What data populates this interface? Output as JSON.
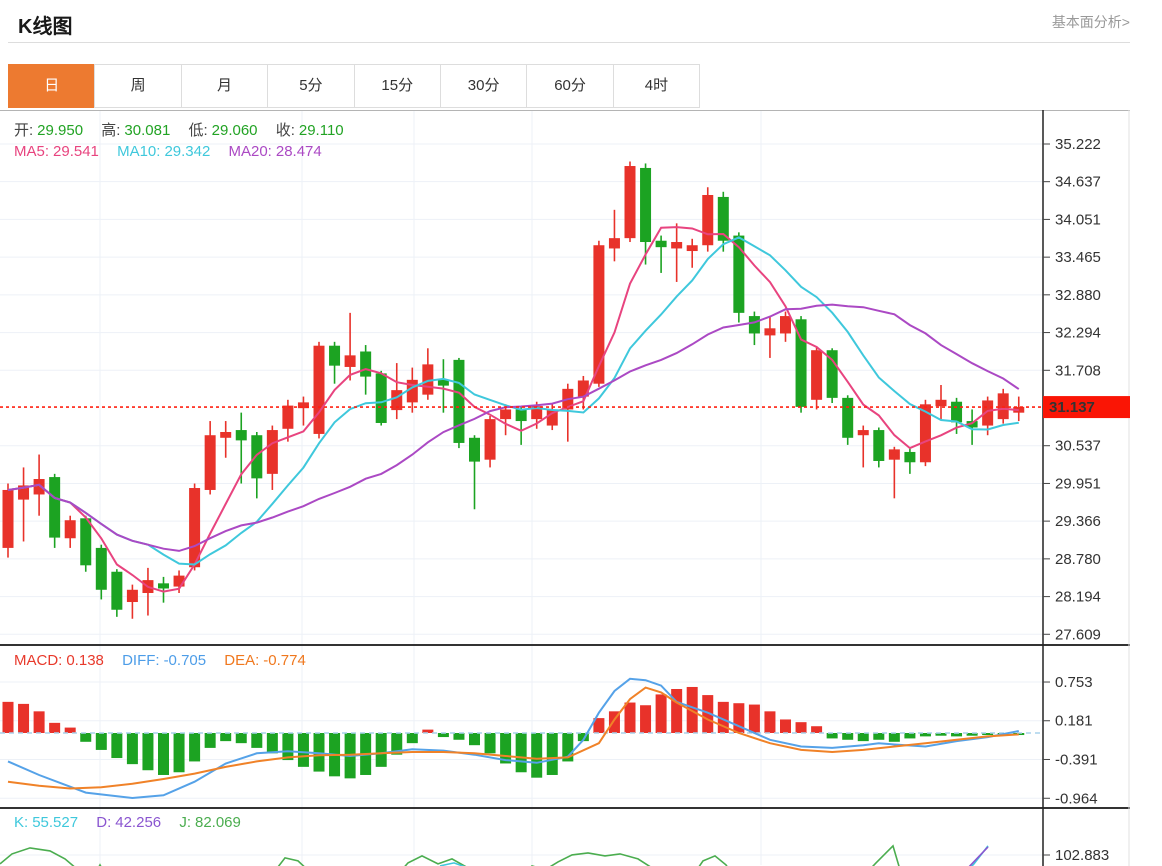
{
  "header": {
    "title": "K线图",
    "link": "基本面分析>"
  },
  "tabs": {
    "items": [
      "日",
      "周",
      "月",
      "5分",
      "15分",
      "30分",
      "60分",
      "4时"
    ],
    "active_index": 0
  },
  "legend": {
    "ohlc": {
      "open_label": "开:",
      "open": "29.950",
      "high_label": "高:",
      "high": "30.081",
      "low_label": "低:",
      "low": "29.060",
      "close_label": "收:",
      "close": "29.110"
    },
    "ma": {
      "ma5_label": "MA5:",
      "ma5": "29.541",
      "ma10_label": "MA10:",
      "ma10": "29.342",
      "ma20_label": "MA20:",
      "ma20": "28.474"
    },
    "macd": {
      "macd_label": "MACD:",
      "macd": "0.138",
      "diff_label": "DIFF:",
      "diff": "-0.705",
      "dea_label": "DEA:",
      "dea": "-0.774"
    },
    "kdj": {
      "k_label": "K:",
      "k": "55.527",
      "d_label": "D:",
      "d": "42.256",
      "j_label": "J:",
      "j": "82.069"
    }
  },
  "colors": {
    "up": "#e8322a",
    "down": "#1ca322",
    "tab_active": "#ed7a30",
    "price_badge": "#fa1505",
    "price_line": "#ff2012",
    "ma5": "#e8447f",
    "ma10": "#3fc8dc",
    "ma20": "#ab49c4",
    "diff": "#55a2e8",
    "dea": "#f08228",
    "zero_dash": "#a8d2ec",
    "k": "#3fc8dc",
    "d": "#8a55d0",
    "j": "#4bad4f",
    "grid": "#edf1f7",
    "axis": "#222"
  },
  "chart_data": {
    "type": "candlestick",
    "interval": "日",
    "main": {
      "y_axis_labels": [
        "35.222",
        "34.637",
        "34.051",
        "33.465",
        "32.880",
        "32.294",
        "31.708",
        "30.537",
        "29.951",
        "29.366",
        "28.780",
        "28.194",
        "27.609"
      ],
      "current_price": "31.137",
      "ma_periods": [
        5,
        10,
        20
      ],
      "candles_ochl": [
        [
          28.95,
          29.85,
          28.8,
          29.95
        ],
        [
          29.7,
          29.92,
          29.05,
          30.2
        ],
        [
          29.78,
          30.02,
          29.45,
          30.4
        ],
        [
          30.05,
          29.11,
          28.95,
          30.1
        ],
        [
          29.1,
          29.38,
          28.95,
          29.45
        ],
        [
          29.41,
          28.68,
          28.58,
          29.45
        ],
        [
          28.95,
          28.3,
          28.15,
          29.0
        ],
        [
          28.58,
          27.99,
          27.88,
          28.62
        ],
        [
          28.11,
          28.3,
          27.85,
          28.38
        ],
        [
          28.25,
          28.45,
          27.9,
          28.64
        ],
        [
          28.4,
          28.32,
          28.1,
          28.5
        ],
        [
          28.35,
          28.52,
          28.25,
          28.6
        ],
        [
          28.65,
          29.88,
          28.6,
          29.95
        ],
        [
          29.85,
          30.7,
          29.78,
          30.92
        ],
        [
          30.66,
          30.75,
          30.35,
          30.92
        ],
        [
          30.78,
          30.62,
          29.95,
          31.05
        ],
        [
          30.7,
          30.03,
          29.72,
          30.75
        ],
        [
          30.1,
          30.78,
          29.85,
          30.85
        ],
        [
          30.8,
          31.16,
          30.6,
          31.25
        ],
        [
          31.12,
          31.21,
          30.85,
          31.3
        ],
        [
          30.72,
          32.09,
          30.65,
          32.15
        ],
        [
          32.09,
          31.78,
          31.5,
          32.15
        ],
        [
          31.76,
          31.94,
          31.55,
          32.6
        ],
        [
          32.0,
          31.61,
          31.33,
          32.1
        ],
        [
          31.66,
          30.89,
          30.85,
          31.7
        ],
        [
          31.09,
          31.4,
          30.95,
          31.82
        ],
        [
          31.21,
          31.56,
          31.05,
          31.75
        ],
        [
          31.33,
          31.8,
          31.25,
          32.05
        ],
        [
          31.56,
          31.47,
          31.05,
          31.88
        ],
        [
          31.87,
          30.58,
          30.5,
          31.9
        ],
        [
          30.66,
          30.29,
          29.55,
          30.7
        ],
        [
          30.32,
          30.95,
          30.2,
          31.0
        ],
        [
          30.95,
          31.1,
          30.7,
          31.18
        ],
        [
          31.1,
          30.92,
          30.55,
          31.15
        ],
        [
          30.95,
          31.15,
          30.8,
          31.22
        ],
        [
          30.85,
          31.1,
          30.78,
          31.18
        ],
        [
          31.1,
          31.42,
          30.6,
          31.5
        ],
        [
          31.3,
          31.55,
          31.1,
          31.62
        ],
        [
          31.5,
          33.65,
          31.45,
          33.72
        ],
        [
          33.6,
          33.76,
          33.4,
          34.2
        ],
        [
          33.76,
          34.88,
          33.7,
          34.95
        ],
        [
          34.85,
          33.7,
          33.35,
          34.92
        ],
        [
          33.72,
          33.62,
          33.22,
          33.8
        ],
        [
          33.6,
          33.7,
          33.08,
          33.99
        ],
        [
          33.56,
          33.65,
          33.3,
          33.75
        ],
        [
          33.65,
          34.43,
          33.55,
          34.55
        ],
        [
          34.4,
          33.72,
          33.55,
          34.48
        ],
        [
          33.8,
          32.6,
          32.45,
          33.85
        ],
        [
          32.55,
          32.28,
          32.1,
          32.62
        ],
        [
          32.25,
          32.36,
          31.9,
          32.55
        ],
        [
          32.28,
          32.55,
          32.15,
          32.62
        ],
        [
          32.5,
          31.14,
          31.05,
          32.55
        ],
        [
          31.25,
          32.02,
          31.1,
          32.08
        ],
        [
          32.02,
          31.28,
          31.2,
          32.05
        ],
        [
          31.28,
          30.66,
          30.55,
          31.32
        ],
        [
          30.7,
          30.78,
          30.2,
          30.85
        ],
        [
          30.78,
          30.3,
          30.2,
          30.82
        ],
        [
          30.32,
          30.48,
          29.72,
          30.52
        ],
        [
          30.44,
          30.28,
          30.1,
          30.5
        ],
        [
          30.28,
          31.18,
          30.22,
          31.25
        ],
        [
          31.15,
          31.25,
          30.95,
          31.48
        ],
        [
          31.22,
          30.9,
          30.72,
          31.28
        ],
        [
          30.92,
          30.82,
          30.55,
          31.1
        ],
        [
          30.85,
          31.24,
          30.7,
          31.3
        ],
        [
          30.95,
          31.35,
          30.88,
          31.42
        ],
        [
          31.05,
          31.14,
          30.92,
          31.3
        ]
      ]
    },
    "macd": {
      "y_axis_labels": [
        "0.753",
        "0.181",
        "-0.391",
        "-0.964"
      ],
      "hist": [
        0.46,
        0.43,
        0.32,
        0.15,
        0.08,
        -0.13,
        -0.25,
        -0.37,
        -0.46,
        -0.55,
        -0.62,
        -0.58,
        -0.42,
        -0.22,
        -0.12,
        -0.15,
        -0.22,
        -0.3,
        -0.4,
        -0.5,
        -0.57,
        -0.64,
        -0.67,
        -0.62,
        -0.5,
        -0.32,
        -0.15,
        0.05,
        -0.06,
        -0.1,
        -0.18,
        -0.3,
        -0.45,
        -0.58,
        -0.66,
        -0.62,
        -0.42,
        -0.12,
        0.22,
        0.32,
        0.45,
        0.41,
        0.57,
        0.65,
        0.68,
        0.56,
        0.46,
        0.44,
        0.42,
        0.32,
        0.2,
        0.16,
        0.1,
        -0.08,
        -0.1,
        -0.12,
        -0.1,
        -0.13,
        -0.08,
        -0.05,
        -0.04,
        -0.05,
        -0.04,
        -0.03,
        -0.03,
        -0.03
      ],
      "diff_points": [
        [
          0,
          -0.42
        ],
        [
          2,
          -0.62
        ],
        [
          5,
          -0.88
        ],
        [
          8,
          -0.96
        ],
        [
          10,
          -0.92
        ],
        [
          12,
          -0.72
        ],
        [
          14,
          -0.45
        ],
        [
          16,
          -0.3
        ],
        [
          18,
          -0.27
        ],
        [
          20,
          -0.3
        ],
        [
          22,
          -0.34
        ],
        [
          24,
          -0.3
        ],
        [
          26,
          -0.24
        ],
        [
          28,
          -0.26
        ],
        [
          30,
          -0.32
        ],
        [
          32,
          -0.4
        ],
        [
          34,
          -0.44
        ],
        [
          36,
          -0.35
        ],
        [
          37,
          -0.1
        ],
        [
          38,
          0.3
        ],
        [
          39,
          0.62
        ],
        [
          40,
          0.8
        ],
        [
          41,
          0.78
        ],
        [
          42,
          0.7
        ],
        [
          43,
          0.46
        ],
        [
          45,
          0.3
        ],
        [
          47,
          0.1
        ],
        [
          49,
          -0.1
        ],
        [
          51,
          -0.2
        ],
        [
          53,
          -0.22
        ],
        [
          55,
          -0.18
        ],
        [
          56,
          -0.15
        ],
        [
          57,
          -0.17
        ],
        [
          59,
          -0.2
        ],
        [
          61,
          -0.12
        ],
        [
          63,
          -0.06
        ],
        [
          65,
          0.03
        ]
      ],
      "dea_points": [
        [
          0,
          -0.72
        ],
        [
          2,
          -0.78
        ],
        [
          4,
          -0.82
        ],
        [
          6,
          -0.8
        ],
        [
          8,
          -0.75
        ],
        [
          10,
          -0.68
        ],
        [
          12,
          -0.6
        ],
        [
          14,
          -0.5
        ],
        [
          16,
          -0.42
        ],
        [
          18,
          -0.36
        ],
        [
          20,
          -0.33
        ],
        [
          22,
          -0.32
        ],
        [
          24,
          -0.3
        ],
        [
          26,
          -0.28
        ],
        [
          28,
          -0.28
        ],
        [
          30,
          -0.3
        ],
        [
          32,
          -0.34
        ],
        [
          34,
          -0.38
        ],
        [
          36,
          -0.36
        ],
        [
          38,
          -0.15
        ],
        [
          39,
          0.2
        ],
        [
          40,
          0.5
        ],
        [
          41,
          0.67
        ],
        [
          42,
          0.6
        ],
        [
          43,
          0.45
        ],
        [
          45,
          0.2
        ],
        [
          47,
          0.0
        ],
        [
          49,
          -0.15
        ],
        [
          51,
          -0.25
        ],
        [
          53,
          -0.28
        ],
        [
          55,
          -0.25
        ],
        [
          57,
          -0.2
        ],
        [
          59,
          -0.15
        ],
        [
          61,
          -0.1
        ],
        [
          63,
          -0.05
        ],
        [
          65,
          -0.02
        ]
      ]
    },
    "kdj": {
      "y_axis_labels": [
        "102.883"
      ],
      "j_segments": [
        [
          [
            0,
            94
          ],
          [
            12,
            104
          ],
          [
            30,
            110
          ],
          [
            50,
            107
          ],
          [
            65,
            99
          ],
          [
            78,
            88
          ],
          [
            92,
            78
          ],
          [
            100,
            93
          ],
          [
            108,
            78
          ]
        ],
        [
          [
            268,
            78
          ],
          [
            285,
            100
          ],
          [
            298,
            97
          ],
          [
            312,
            84
          ],
          [
            325,
            78
          ]
        ],
        [
          [
            393,
            78
          ],
          [
            408,
            95
          ],
          [
            422,
            102
          ],
          [
            438,
            94
          ],
          [
            452,
            99
          ],
          [
            468,
            90
          ],
          [
            480,
            78
          ]
        ],
        [
          [
            518,
            78
          ],
          [
            532,
            92
          ],
          [
            545,
            88
          ],
          [
            558,
            96
          ],
          [
            572,
            103
          ],
          [
            588,
            105
          ],
          [
            605,
            102
          ],
          [
            620,
            104
          ],
          [
            638,
            99
          ],
          [
            652,
            90
          ],
          [
            662,
            78
          ]
        ],
        [
          [
            690,
            78
          ],
          [
            703,
            97
          ],
          [
            715,
            102
          ],
          [
            726,
            93
          ],
          [
            736,
            78
          ]
        ],
        [
          [
            860,
            78
          ],
          [
            876,
            95
          ],
          [
            893,
            112
          ],
          [
            903,
            78
          ]
        ]
      ],
      "k_segments": [
        [
          [
            440,
            92
          ],
          [
            454,
            95
          ],
          [
            468,
            90
          ]
        ],
        [
          [
            956,
            76
          ],
          [
            974,
            94
          ],
          [
            988,
            112
          ]
        ]
      ],
      "d_segments": [
        [
          [
            950,
            76
          ],
          [
            968,
            90
          ],
          [
            988,
            111
          ]
        ]
      ]
    }
  }
}
